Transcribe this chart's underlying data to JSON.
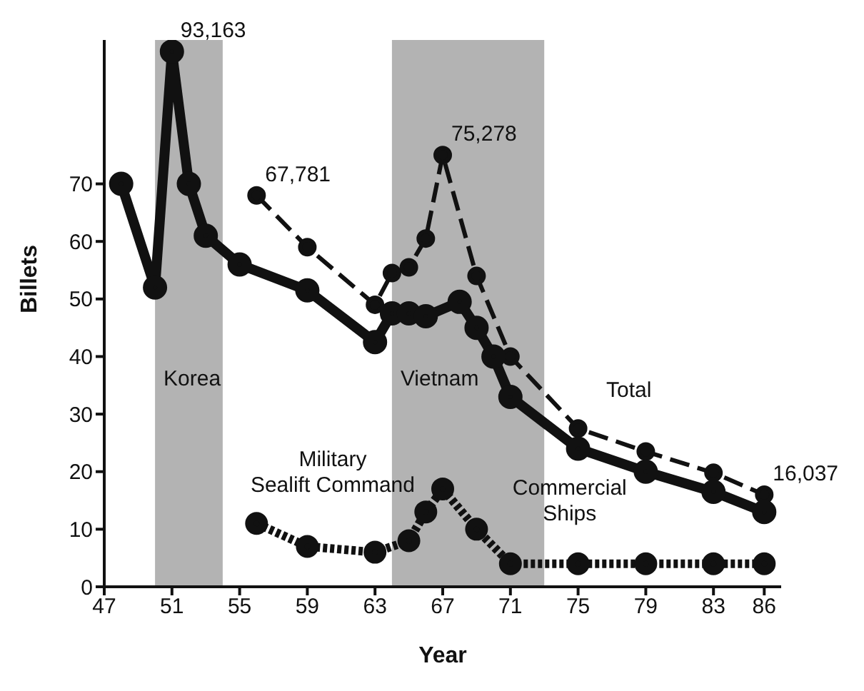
{
  "chart_data": {
    "type": "line",
    "xlabel": "Year",
    "ylabel": "Billets",
    "xlim": [
      47,
      87
    ],
    "xticks": [
      47,
      51,
      55,
      59,
      63,
      67,
      71,
      75,
      79,
      83,
      86
    ],
    "ylim": [
      0,
      95
    ],
    "yticks": [
      0,
      10,
      20,
      30,
      40,
      50,
      60,
      70
    ],
    "marker": "circle",
    "annotations": [
      {
        "text": "93,163",
        "x": 51,
        "y": 93
      },
      {
        "text": "67,781",
        "x": 56,
        "y": 68
      },
      {
        "text": "75,278",
        "x": 67,
        "y": 75
      },
      {
        "text": "16,037",
        "x": 86,
        "y": 16
      }
    ],
    "bands": [
      {
        "axis": "x",
        "from": 50,
        "to": 54,
        "label": "Korea",
        "color": "#9a9a9a"
      },
      {
        "axis": "x",
        "from": 64,
        "to": 73,
        "label": "Vietnam",
        "color": "#9a9a9a"
      }
    ],
    "series": [
      {
        "name": "Total",
        "color": "#111111",
        "line_style": "dashed",
        "x": [
          56,
          59,
          63,
          64,
          65,
          66,
          67,
          69,
          71,
          75,
          79,
          83,
          86
        ],
        "values": [
          68,
          59,
          49,
          54.5,
          55.5,
          60.5,
          75,
          54,
          40,
          27.5,
          23.5,
          19.8,
          16
        ]
      },
      {
        "name": "Commercial Ships",
        "color": "#111111",
        "line_style": "solid",
        "x": [
          48,
          50,
          51,
          52,
          53,
          55,
          59,
          63,
          64,
          65,
          66,
          68,
          69,
          70,
          71,
          75,
          79,
          83,
          86
        ],
        "values": [
          70,
          52,
          93,
          70,
          61,
          56,
          51.5,
          42.5,
          47.5,
          47.5,
          47,
          49.5,
          45,
          40,
          33,
          24,
          20,
          16.5,
          13
        ]
      },
      {
        "name": "Military Sealift Command",
        "color": "#111111",
        "line_style": "dotted",
        "x": [
          56,
          59,
          63,
          65,
          66,
          67,
          69,
          71,
          75,
          79,
          83,
          86
        ],
        "values": [
          11,
          7,
          6,
          8,
          13,
          17,
          10,
          4,
          4,
          4,
          4,
          4
        ]
      }
    ]
  }
}
